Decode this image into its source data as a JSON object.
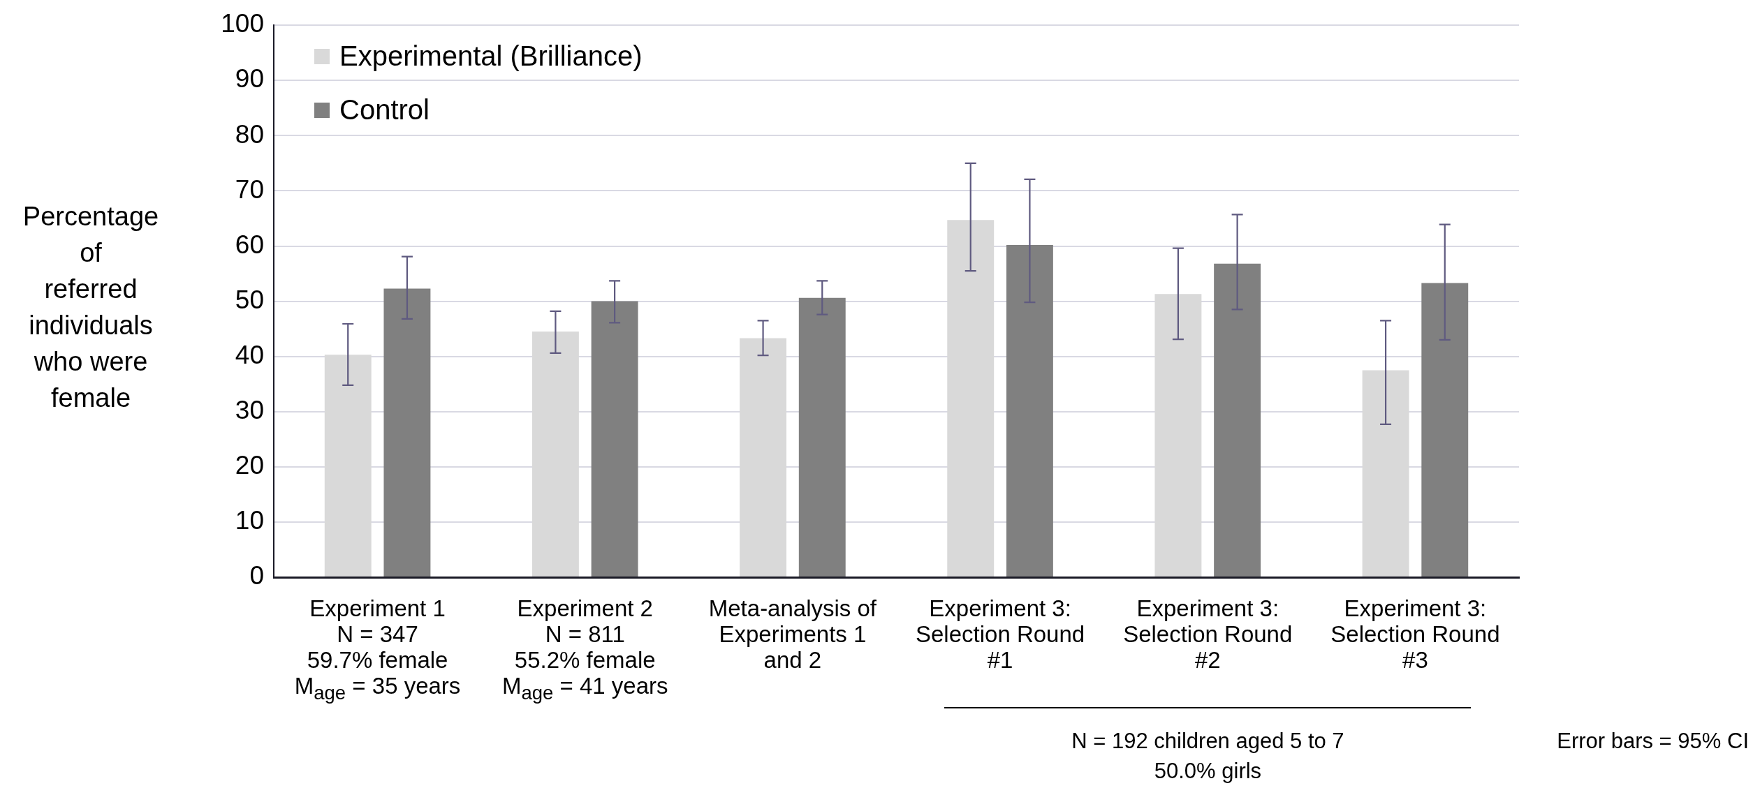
{
  "chart_data": {
    "type": "bar",
    "ylabel": "Percentage\nof\nreferred\nindividuals\nwho were\nfemale",
    "categories": [
      "Experiment 1\nN = 347\n59.7% female\nM$_{age}$ = 35 years",
      "Experiment 2\nN = 811\n55.2% female\nM$_{age}$ = 41 years",
      "Meta-analysis of\nExperiments 1\nand 2",
      "Experiment 3:\nSelection Round\n#1",
      "Experiment 3:\nSelection Round\n#2",
      "Experiment 3:\nSelection Round\n#3"
    ],
    "series": [
      {
        "name": "Experimental (Brilliance)",
        "color": "#d9d9d9",
        "values": [
          40.3,
          44.5,
          43.3,
          64.7,
          51.3,
          37.5
        ],
        "errors": [
          [
            34.8,
            45.9
          ],
          [
            40.6,
            48.2
          ],
          [
            40.2,
            46.5
          ],
          [
            55.5,
            75.0
          ],
          [
            43.1,
            59.6
          ],
          [
            27.7,
            46.5
          ]
        ]
      },
      {
        "name": "Control",
        "color": "#808080",
        "values": [
          52.3,
          50.0,
          50.6,
          60.2,
          56.8,
          53.3
        ],
        "errors": [
          [
            46.8,
            58.1
          ],
          [
            46.1,
            53.7
          ],
          [
            47.6,
            53.7
          ],
          [
            49.8,
            72.1
          ],
          [
            48.5,
            65.7
          ],
          [
            43.0,
            63.9
          ]
        ]
      }
    ],
    "ylim": [
      0,
      100
    ],
    "yticks": [
      0,
      10,
      20,
      30,
      40,
      50,
      60,
      70,
      80,
      90,
      100
    ],
    "grid": "y",
    "legend": "top left",
    "annotations": [
      "N = 192 children aged 5 to 7\n50.0% girls",
      "Error bars = 95% CI"
    ]
  }
}
